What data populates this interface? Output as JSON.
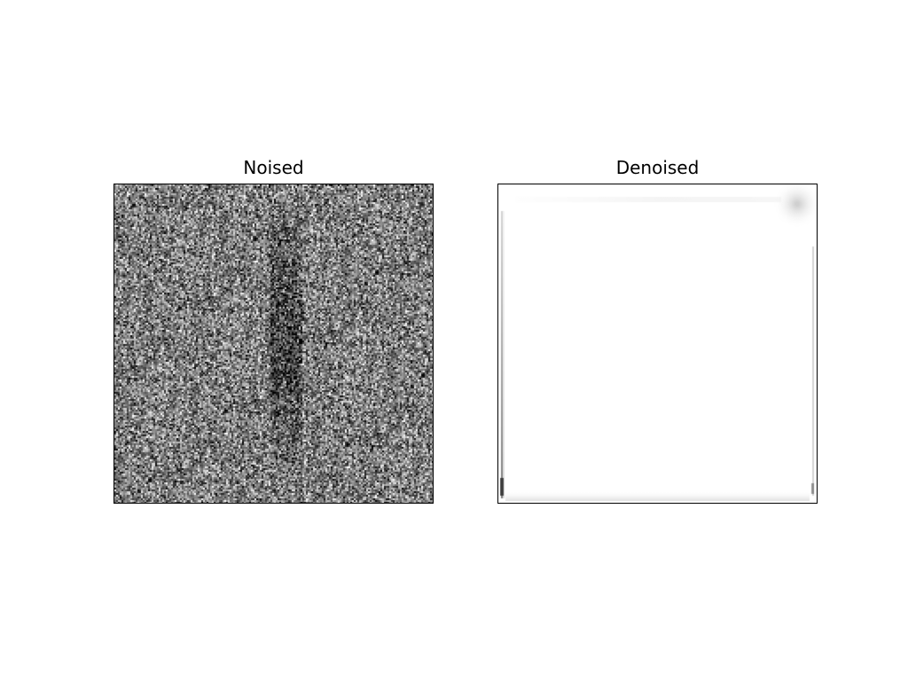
{
  "figure": {
    "panels": [
      {
        "title": "Noised"
      },
      {
        "title": "Denoised"
      }
    ]
  }
}
